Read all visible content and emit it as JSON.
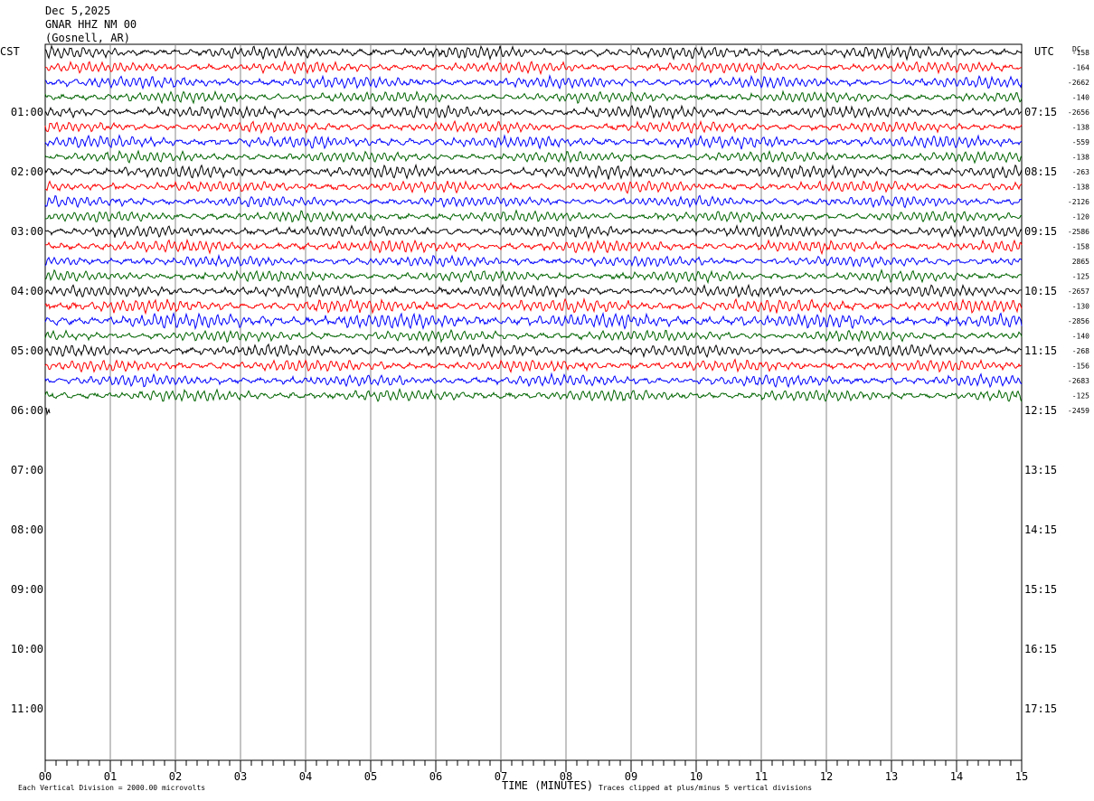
{
  "header": {
    "date": "Dec 5,2025",
    "station": "GNAR HHZ NM 00",
    "location": "(Gosnell, AR)"
  },
  "left_zone_label": "CST",
  "right_zone_label": "UTC",
  "dc_header": "DC",
  "footer": {
    "scale_note": "Each Vertical Division = 2000.00 microvolts",
    "x_title": "TIME (MINUTES)",
    "clip_note": "Traces clipped at plus/minus 5 vertical divisions"
  },
  "chart_data": {
    "type": "line",
    "title": "",
    "xlabel": "TIME (MINUTES)",
    "ylabel": "",
    "xlim": [
      0,
      15
    ],
    "x_ticks": [
      "00",
      "01",
      "02",
      "03",
      "04",
      "05",
      "06",
      "07",
      "08",
      "09",
      "10",
      "11",
      "12",
      "13",
      "14",
      "15"
    ],
    "left_hour_labels": [
      "01:00",
      "02:00",
      "03:00",
      "04:00",
      "05:00",
      "06:00",
      "07:00",
      "08:00",
      "09:00",
      "10:00",
      "11:00"
    ],
    "right_hour_labels": [
      "07:15",
      "08:15",
      "09:15",
      "10:15",
      "11:15",
      "12:15",
      "13:15",
      "14:15",
      "15:15",
      "16:15",
      "17:15"
    ],
    "trace_count_total_slots": 48,
    "trace_colors": [
      "#000000",
      "#ff0000",
      "#0000ff",
      "#006400"
    ],
    "dc_offsets": [
      "-158",
      "-164",
      "-2662",
      "-140",
      "-2656",
      "-138",
      "-559",
      "-138",
      "-263",
      "-138",
      "-2126",
      "-120",
      "-2586",
      "-158",
      "2865",
      "-125",
      "-2657",
      "-130",
      "-2856",
      "-140",
      "-268",
      "-156",
      "-2683",
      "-125",
      "-2459"
    ],
    "series": [
      {
        "row": 0,
        "color": "#000000",
        "amplitude": 0.45
      },
      {
        "row": 1,
        "color": "#ff0000",
        "amplitude": 0.4
      },
      {
        "row": 2,
        "color": "#0000ff",
        "amplitude": 0.42
      },
      {
        "row": 3,
        "color": "#006400",
        "amplitude": 0.4
      },
      {
        "row": 4,
        "color": "#000000",
        "amplitude": 0.45
      },
      {
        "row": 5,
        "color": "#ff0000",
        "amplitude": 0.4
      },
      {
        "row": 6,
        "color": "#0000ff",
        "amplitude": 0.45
      },
      {
        "row": 7,
        "color": "#006400",
        "amplitude": 0.4
      },
      {
        "row": 8,
        "color": "#000000",
        "amplitude": 0.45
      },
      {
        "row": 9,
        "color": "#ff0000",
        "amplitude": 0.42
      },
      {
        "row": 10,
        "color": "#0000ff",
        "amplitude": 0.4
      },
      {
        "row": 11,
        "color": "#006400",
        "amplitude": 0.4
      },
      {
        "row": 12,
        "color": "#000000",
        "amplitude": 0.42
      },
      {
        "row": 13,
        "color": "#ff0000",
        "amplitude": 0.45
      },
      {
        "row": 14,
        "color": "#0000ff",
        "amplitude": 0.4
      },
      {
        "row": 15,
        "color": "#006400",
        "amplitude": 0.4
      },
      {
        "row": 16,
        "color": "#000000",
        "amplitude": 0.42
      },
      {
        "row": 17,
        "color": "#ff0000",
        "amplitude": 0.48
      },
      {
        "row": 18,
        "color": "#0000ff",
        "amplitude": 0.55
      },
      {
        "row": 19,
        "color": "#006400",
        "amplitude": 0.4
      },
      {
        "row": 20,
        "color": "#000000",
        "amplitude": 0.45
      },
      {
        "row": 21,
        "color": "#ff0000",
        "amplitude": 0.42
      },
      {
        "row": 22,
        "color": "#0000ff",
        "amplitude": 0.42
      },
      {
        "row": 23,
        "color": "#006400",
        "amplitude": 0.42
      }
    ]
  }
}
